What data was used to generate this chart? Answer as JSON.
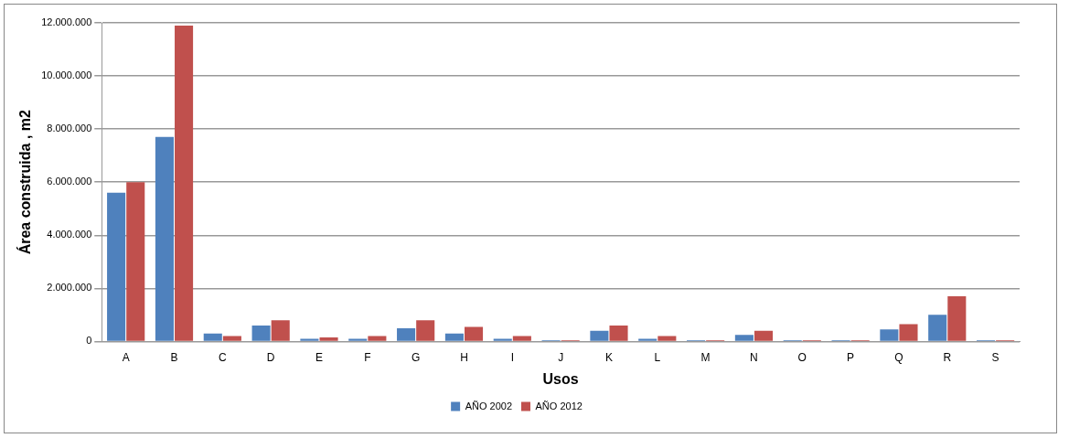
{
  "chart_data": {
    "type": "bar",
    "xlabel": "Usos",
    "ylabel": "Área construida , m2",
    "categories": [
      "A",
      "B",
      "C",
      "D",
      "E",
      "F",
      "G",
      "H",
      "I",
      "J",
      "K",
      "L",
      "M",
      "N",
      "O",
      "P",
      "Q",
      "R",
      "S"
    ],
    "series": [
      {
        "name": "AÑO 2002",
        "color": "#4f81bd",
        "values": [
          5600000,
          7700000,
          300000,
          600000,
          100000,
          100000,
          500000,
          300000,
          100000,
          50000,
          400000,
          100000,
          50000,
          250000,
          50000,
          50000,
          450000,
          1000000,
          50000
        ]
      },
      {
        "name": "AÑO 2012",
        "color": "#c0504d",
        "values": [
          6000000,
          11900000,
          200000,
          800000,
          150000,
          200000,
          800000,
          550000,
          200000,
          50000,
          600000,
          200000,
          50000,
          400000,
          50000,
          50000,
          650000,
          1700000,
          50000
        ]
      }
    ],
    "ylim": [
      0,
      12000000
    ],
    "yticks": [
      {
        "value": 0,
        "label": "0"
      },
      {
        "value": 2000000,
        "label": "2.000.000"
      },
      {
        "value": 4000000,
        "label": "4.000.000"
      },
      {
        "value": 6000000,
        "label": "6.000.000"
      },
      {
        "value": 8000000,
        "label": "8.000.000"
      },
      {
        "value": 10000000,
        "label": "10.000.000"
      },
      {
        "value": 12000000,
        "label": "12.000.000"
      }
    ],
    "grid": "y",
    "legend": "bottom"
  }
}
